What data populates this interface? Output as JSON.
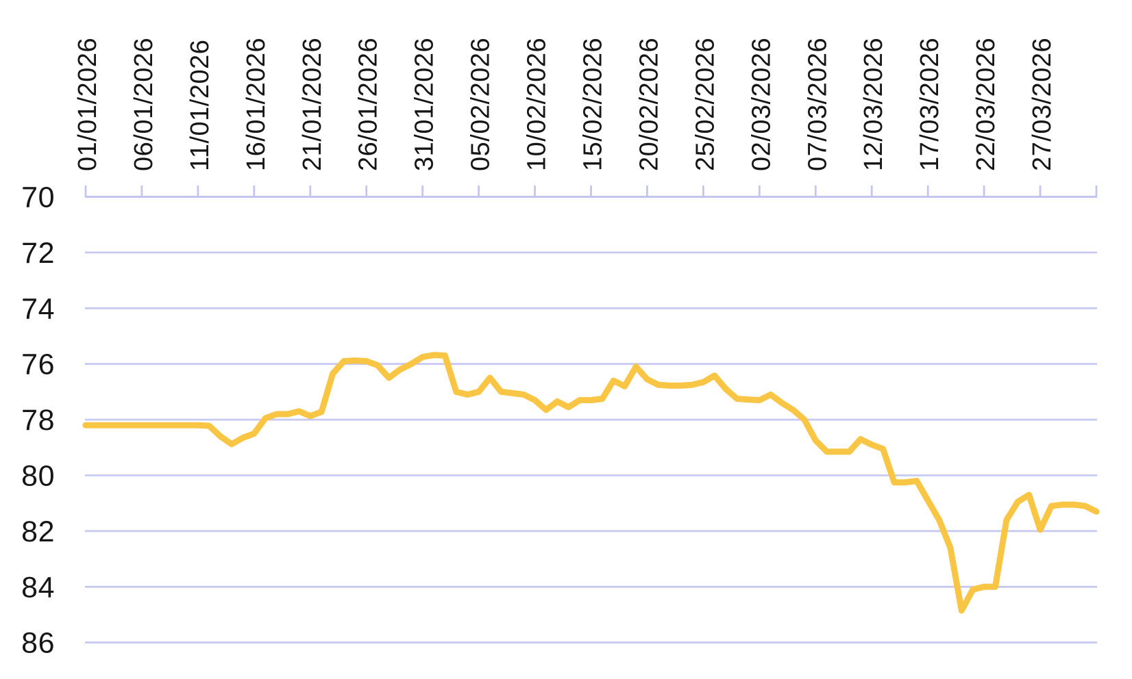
{
  "chart_data": {
    "type": "line",
    "title": "",
    "xlabel": "",
    "ylabel": "",
    "legend": false,
    "grid": true,
    "y_axis_inverted": true,
    "ylim": [
      70,
      86
    ],
    "y_ticks": [
      70,
      72,
      74,
      76,
      78,
      80,
      82,
      84,
      86
    ],
    "x_tick_every": 5,
    "x_tick_labels": [
      "01/01/2026",
      "06/01/2026",
      "11/01/2026",
      "16/01/2026",
      "21/01/2026",
      "26/01/2026",
      "31/01/2026",
      "05/02/2026",
      "10/02/2026",
      "15/02/2026",
      "20/02/2026",
      "25/02/2026",
      "02/03/2026",
      "07/03/2026",
      "12/03/2026",
      "17/03/2026",
      "22/03/2026",
      "27/03/2026"
    ],
    "x": [
      "01/01/2026",
      "02/01/2026",
      "03/01/2026",
      "04/01/2026",
      "05/01/2026",
      "06/01/2026",
      "07/01/2026",
      "08/01/2026",
      "09/01/2026",
      "10/01/2026",
      "11/01/2026",
      "12/01/2026",
      "13/01/2026",
      "14/01/2026",
      "15/01/2026",
      "16/01/2026",
      "17/01/2026",
      "18/01/2026",
      "19/01/2026",
      "20/01/2026",
      "21/01/2026",
      "22/01/2026",
      "23/01/2026",
      "24/01/2026",
      "25/01/2026",
      "26/01/2026",
      "27/01/2026",
      "28/01/2026",
      "29/01/2026",
      "30/01/2026",
      "31/01/2026",
      "01/02/2026",
      "02/02/2026",
      "03/02/2026",
      "04/02/2026",
      "05/02/2026",
      "06/02/2026",
      "07/02/2026",
      "08/02/2026",
      "09/02/2026",
      "10/02/2026",
      "11/02/2026",
      "12/02/2026",
      "13/02/2026",
      "14/02/2026",
      "15/02/2026",
      "16/02/2026",
      "17/02/2026",
      "18/02/2026",
      "19/02/2026",
      "20/02/2026",
      "21/02/2026",
      "22/02/2026",
      "23/02/2026",
      "24/02/2026",
      "25/02/2026",
      "26/02/2026",
      "27/02/2026",
      "28/02/2026",
      "01/03/2026",
      "02/03/2026",
      "03/03/2026",
      "04/03/2026",
      "05/03/2026",
      "06/03/2026",
      "07/03/2026",
      "08/03/2026",
      "09/03/2026",
      "10/03/2026",
      "11/03/2026",
      "12/03/2026",
      "13/03/2026",
      "14/03/2026",
      "15/03/2026",
      "16/03/2026",
      "17/03/2026",
      "18/03/2026",
      "19/03/2026",
      "20/03/2026",
      "21/03/2026",
      "22/03/2026",
      "23/03/2026",
      "24/03/2026",
      "25/03/2026",
      "26/03/2026",
      "27/03/2026",
      "28/03/2026",
      "29/03/2026",
      "30/03/2026",
      "31/03/2026",
      "01/04/2026"
    ],
    "values": [
      78.2,
      78.2,
      78.2,
      78.2,
      78.2,
      78.2,
      78.2,
      78.2,
      78.2,
      78.2,
      78.2,
      78.22,
      78.6,
      78.88,
      78.65,
      78.5,
      77.95,
      77.8,
      77.8,
      77.7,
      77.87,
      77.72,
      76.35,
      75.9,
      75.88,
      75.9,
      76.05,
      76.5,
      76.2,
      76.0,
      75.75,
      75.68,
      75.7,
      77.0,
      77.1,
      77.0,
      76.5,
      77.0,
      77.05,
      77.1,
      77.3,
      77.65,
      77.35,
      77.55,
      77.3,
      77.3,
      77.25,
      76.6,
      76.8,
      76.1,
      76.55,
      76.75,
      76.78,
      76.78,
      76.75,
      76.65,
      76.42,
      76.9,
      77.25,
      77.28,
      77.3,
      77.1,
      77.4,
      77.65,
      78.0,
      78.75,
      79.15,
      79.15,
      79.15,
      78.7,
      78.9,
      79.05,
      80.25,
      80.25,
      80.2,
      80.9,
      81.6,
      82.6,
      84.85,
      84.1,
      84.0,
      84.0,
      81.6,
      80.95,
      80.7,
      81.95,
      81.1,
      81.05,
      81.05,
      81.1,
      81.3
    ],
    "series_color": "#F9C544",
    "grid_color": "#C7C9F2",
    "axis_color": "#C3C5EF",
    "text_color": "#161616",
    "background_color": "#FFFFFF"
  }
}
